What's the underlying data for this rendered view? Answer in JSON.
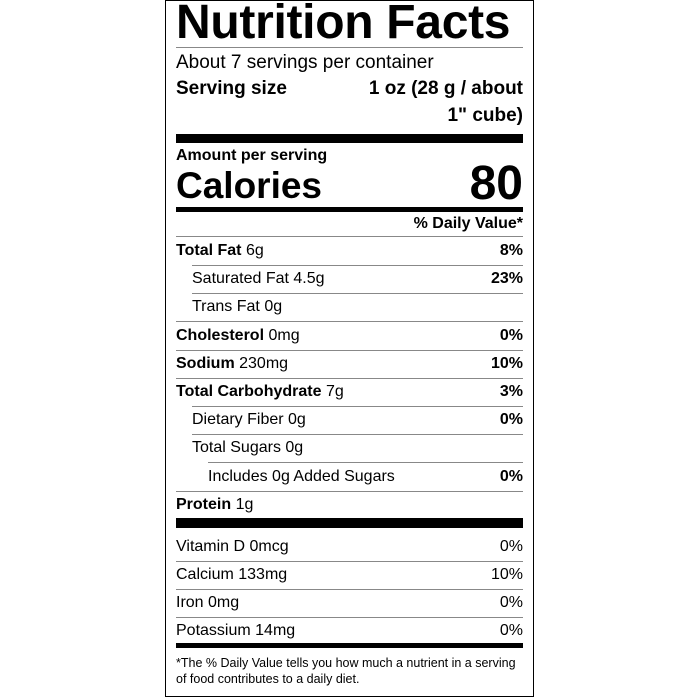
{
  "title": "Nutrition Facts",
  "servings_per_container": "About 7 servings per container",
  "serving_size_label": "Serving size",
  "serving_size_value_line1": "1 oz (28 g / about",
  "serving_size_value_line2": "1\" cube)",
  "amount_per_serving": "Amount per serving",
  "calories_label": "Calories",
  "calories_value": "80",
  "daily_value_header": "% Daily Value*",
  "nutrients": [
    {
      "name": "Total Fat",
      "amount": "6g",
      "dv": "8%",
      "bold": true,
      "indent": 0
    },
    {
      "name": "Saturated Fat",
      "amount": "4.5g",
      "dv": "23%",
      "bold": false,
      "indent": 1
    },
    {
      "name": "Trans Fat",
      "amount": "0g",
      "dv": "",
      "bold": false,
      "indent": 1
    },
    {
      "name": "Cholesterol",
      "amount": "0mg",
      "dv": "0%",
      "bold": true,
      "indent": 0
    },
    {
      "name": "Sodium",
      "amount": "230mg",
      "dv": "10%",
      "bold": true,
      "indent": 0
    },
    {
      "name": "Total Carbohydrate",
      "amount": "7g",
      "dv": "3%",
      "bold": true,
      "indent": 0
    },
    {
      "name": "Dietary Fiber",
      "amount": "0g",
      "dv": "0%",
      "bold": false,
      "indent": 1
    },
    {
      "name": "Total Sugars",
      "amount": "0g",
      "dv": "",
      "bold": false,
      "indent": 1
    },
    {
      "name": "Includes 0g Added Sugars",
      "amount": "",
      "dv": "0%",
      "bold": false,
      "indent": 2
    },
    {
      "name": "Protein",
      "amount": "1g",
      "dv": "",
      "bold": true,
      "indent": 0
    }
  ],
  "vitamins": [
    {
      "name": "Vitamin D",
      "amount": "0mcg",
      "dv": "0%"
    },
    {
      "name": "Calcium",
      "amount": "133mg",
      "dv": "10%"
    },
    {
      "name": "Iron",
      "amount": "0mg",
      "dv": "0%"
    },
    {
      "name": "Potassium",
      "amount": "14mg",
      "dv": "0%"
    }
  ],
  "footnote": "*The % Daily Value tells you how much a nutrient in a serving of food contributes to a daily diet."
}
